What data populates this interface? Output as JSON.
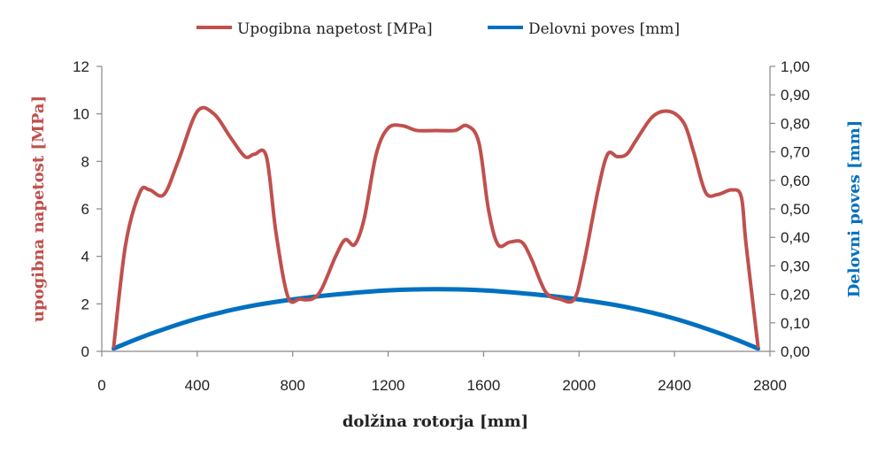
{
  "chart_data": {
    "type": "line",
    "xlabel": "dolžina rotorja [mm]",
    "ylabel_left": "upogibna napetost [MPa]",
    "ylabel_right": "Delovni poves [mm]",
    "xlim": [
      0,
      2800
    ],
    "ylim_left": [
      0,
      12
    ],
    "ylim_right": [
      0,
      1.0
    ],
    "x_ticks": [
      "0",
      "400",
      "800",
      "1200",
      "1600",
      "2000",
      "2400",
      "2800"
    ],
    "y_left_ticks": [
      "0",
      "2",
      "4",
      "6",
      "8",
      "10",
      "12"
    ],
    "y_right_ticks": [
      "0,00",
      "0,10",
      "0,20",
      "0,30",
      "0,40",
      "0,50",
      "0,60",
      "0,70",
      "0,80",
      "0,90",
      "1,00"
    ],
    "grid": false,
    "legend": "top-center",
    "series": [
      {
        "name": "Upogibna napetost [MPa]",
        "axis": "left",
        "color": "#c0504d",
        "x": [
          50,
          100,
          160,
          200,
          260,
          320,
          400,
          470,
          540,
          600,
          640,
          690,
          730,
          780,
          830,
          880,
          920,
          980,
          1020,
          1060,
          1100,
          1150,
          1200,
          1260,
          1320,
          1400,
          1480,
          1530,
          1580,
          1620,
          1660,
          1710,
          1760,
          1800,
          1860,
          1920,
          1980,
          2020,
          2080,
          2120,
          2160,
          2200,
          2240,
          2310,
          2380,
          2440,
          2480,
          2530,
          2580,
          2640,
          2680,
          2700,
          2750
        ],
        "y": [
          0.2,
          4.5,
          6.7,
          6.8,
          6.6,
          8.0,
          10.1,
          10.0,
          9.0,
          8.2,
          8.3,
          8.2,
          5.0,
          2.3,
          2.2,
          2.2,
          2.6,
          4.0,
          4.7,
          4.5,
          5.6,
          8.3,
          9.4,
          9.5,
          9.3,
          9.3,
          9.3,
          9.5,
          8.8,
          6.0,
          4.5,
          4.6,
          4.6,
          3.9,
          2.5,
          2.2,
          2.2,
          3.7,
          6.8,
          8.3,
          8.2,
          8.3,
          8.9,
          9.9,
          10.1,
          9.6,
          8.4,
          6.7,
          6.6,
          6.8,
          6.5,
          4.5,
          0.2
        ]
      },
      {
        "name": "Delovni poves [mm]",
        "axis": "right",
        "color": "#0070c0",
        "x": [
          50,
          200,
          400,
          600,
          800,
          1000,
          1200,
          1400,
          1600,
          1800,
          2000,
          2200,
          2400,
          2600,
          2750
        ],
        "y": [
          0.01,
          0.06,
          0.115,
          0.155,
          0.182,
          0.201,
          0.214,
          0.218,
          0.214,
          0.201,
          0.182,
          0.155,
          0.115,
          0.06,
          0.01
        ]
      }
    ]
  }
}
